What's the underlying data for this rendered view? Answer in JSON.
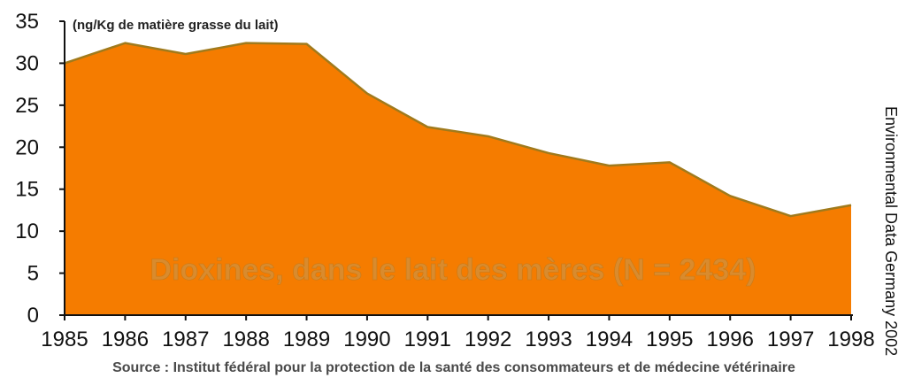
{
  "chart_data": {
    "type": "area",
    "title": "Dioxines, dans le lait des mères (N = 2434)",
    "ylabel": "(ng/Kg de matière grasse du lait)",
    "xlabel": "",
    "ylim": [
      0,
      35
    ],
    "yticks": [
      0,
      5,
      10,
      15,
      20,
      25,
      30,
      35
    ],
    "x": [
      1985,
      1986,
      1987,
      1988,
      1989,
      1990,
      1991,
      1992,
      1993,
      1994,
      1995,
      1996,
      1997,
      1998
    ],
    "xtick_labels": [
      "1985",
      "1986",
      "1987",
      "1988",
      "1989",
      "1990",
      "1991",
      "1992",
      "1993",
      "1994",
      "1995",
      "1996",
      "1997",
      "1998"
    ],
    "values": [
      30.0,
      32.4,
      31.1,
      32.4,
      32.3,
      26.4,
      22.4,
      21.3,
      19.3,
      17.8,
      18.2,
      14.2,
      11.8,
      13.1
    ],
    "fill_color": "#f57c00",
    "line_color": "#a07a1c",
    "source": "Source : Institut fédéral pour la protection de la santé des consommateurs et de médecine vétérinaire",
    "side_note": "Environmental Data Germany 2002"
  }
}
